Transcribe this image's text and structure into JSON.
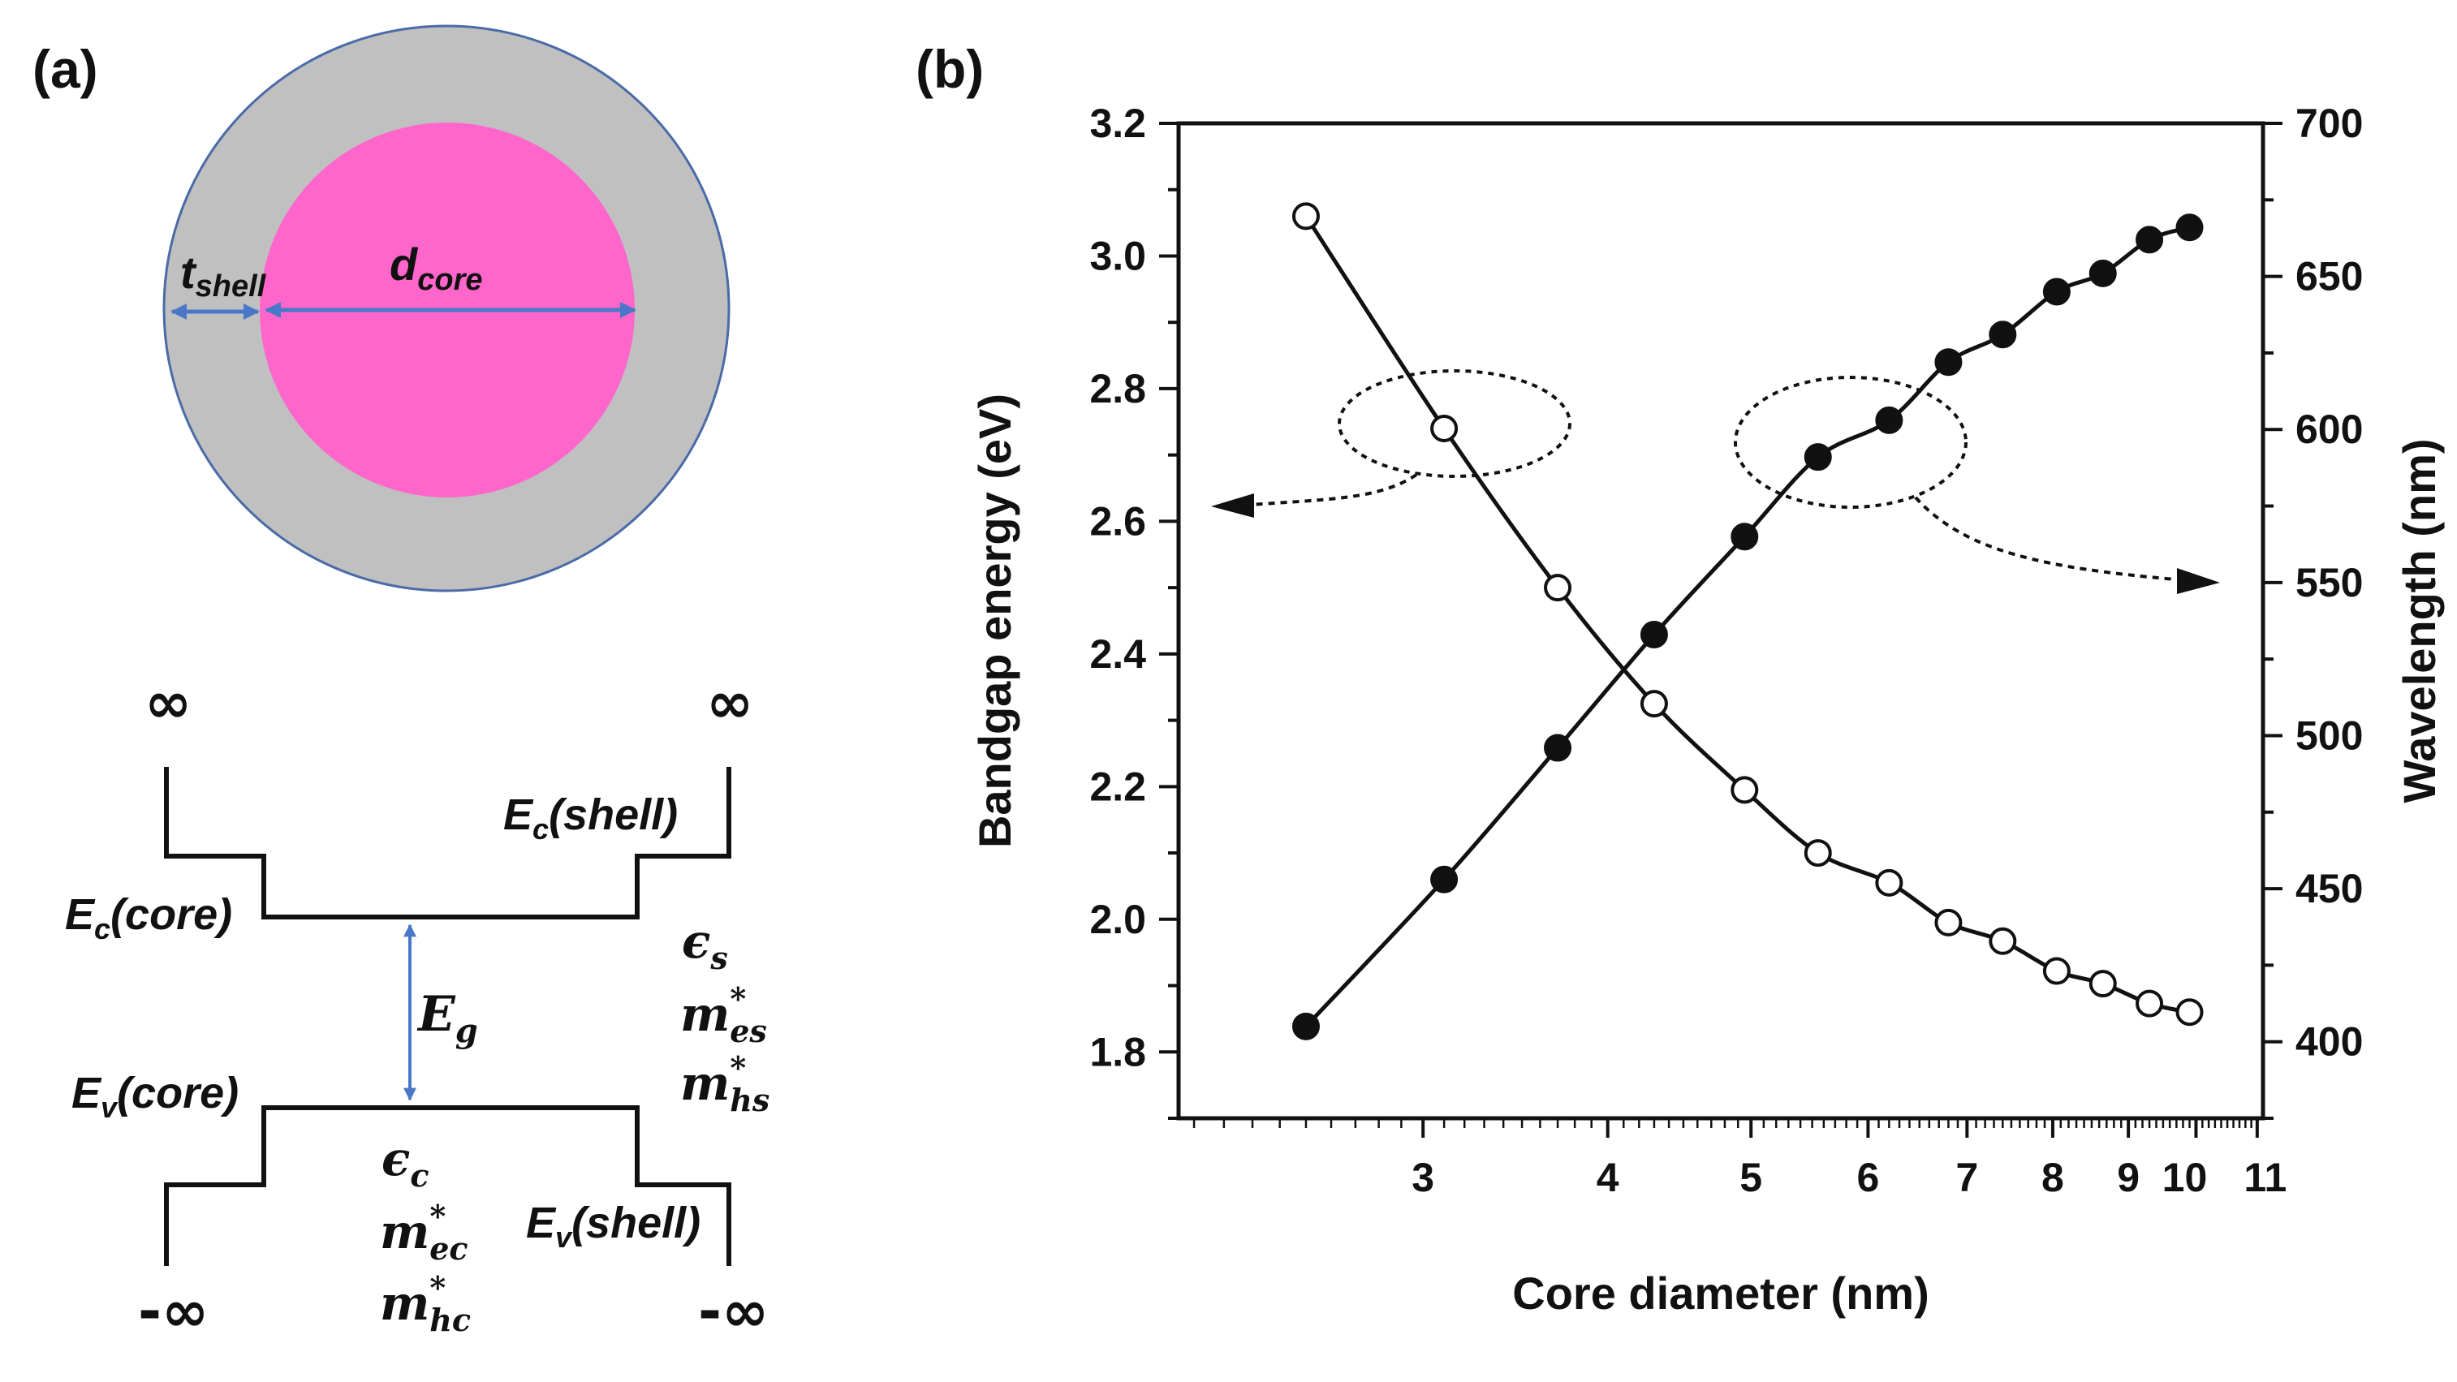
{
  "panel_a": {
    "label": "(a)",
    "colors": {
      "core": "#ff66cc",
      "shell": "#c0c0c0",
      "outline": "#4a6aa8",
      "arrow": "#4a78c8"
    },
    "t_shell": {
      "main": "t",
      "sub": "shell"
    },
    "d_core": {
      "main": "d",
      "sub": "core"
    },
    "inf_top_left": "∞",
    "inf_top_right": "∞",
    "inf_bottom_left": "-∞",
    "inf_bottom_right": "-∞",
    "ec_core": {
      "main": "E",
      "sub": "c",
      "rest": "(core)"
    },
    "ec_shell": {
      "main": "E",
      "sub": "c",
      "rest": "(shell)"
    },
    "ev_core": {
      "main": "E",
      "sub": "v",
      "rest": "(core)"
    },
    "ev_shell": {
      "main": "E",
      "sub": "v",
      "rest": "(shell)"
    },
    "eg": {
      "main": "E",
      "sub": "g"
    },
    "eps_s": {
      "main": "ϵ",
      "sub": "s"
    },
    "m_es": {
      "main": "m",
      "sup": "*",
      "sub": "es"
    },
    "m_hs": {
      "main": "m",
      "sup": "*",
      "sub": "hs"
    },
    "eps_c": {
      "main": "ϵ",
      "sub": "c"
    },
    "m_ec": {
      "main": "m",
      "sup": "*",
      "sub": "ec"
    },
    "m_hc": {
      "main": "m",
      "sup": "*",
      "sub": "hc"
    }
  },
  "panel_b": {
    "label": "(b)"
  },
  "chart_data": {
    "type": "scatter",
    "title": "",
    "xlabel": "Core diameter (nm)",
    "ylabel": "Bandgap energy (eV)",
    "y2label": "Wavelength (nm)",
    "xscale": "log",
    "xlim": [
      2.05,
      11.1
    ],
    "ylim": [
      1.7,
      3.2
    ],
    "y2lim": [
      375,
      700
    ],
    "x_ticks": [
      3,
      4,
      5,
      6,
      7,
      8,
      9,
      10,
      11
    ],
    "x_tick_labels": [
      "3",
      "4",
      "5",
      "6",
      "7",
      "8",
      "9",
      "10",
      "11"
    ],
    "y_ticks": [
      1.8,
      2.0,
      2.2,
      2.4,
      2.6,
      2.8,
      3.0,
      3.2
    ],
    "y_tick_labels": [
      "1.8",
      "2.0",
      "2.2",
      "2.4",
      "2.6",
      "2.8",
      "3.0",
      "3.2"
    ],
    "y2_ticks": [
      400,
      450,
      500,
      550,
      600,
      650,
      700
    ],
    "y2_tick_labels": [
      "400",
      "450",
      "500",
      "550",
      "600",
      "650",
      "700"
    ],
    "series": [
      {
        "name": "Bandgap energy",
        "axis": "left",
        "marker": "open-circle",
        "x": [
          2.5,
          3.1,
          3.7,
          4.3,
          4.95,
          5.55,
          6.2,
          6.8,
          7.4,
          8.05,
          8.65,
          9.3,
          9.9
        ],
        "values": [
          3.06,
          2.74,
          2.5,
          2.325,
          2.195,
          2.1,
          2.055,
          1.995,
          1.967,
          1.922,
          1.903,
          1.873,
          1.86
        ]
      },
      {
        "name": "Wavelength",
        "axis": "right",
        "marker": "filled-circle",
        "x": [
          2.5,
          3.1,
          3.7,
          4.3,
          4.95,
          5.55,
          6.2,
          6.8,
          7.4,
          8.05,
          8.65,
          9.3,
          9.9
        ],
        "values": [
          405,
          453,
          496,
          533,
          565,
          591,
          603,
          622,
          631,
          645,
          651,
          662,
          666
        ]
      }
    ]
  }
}
